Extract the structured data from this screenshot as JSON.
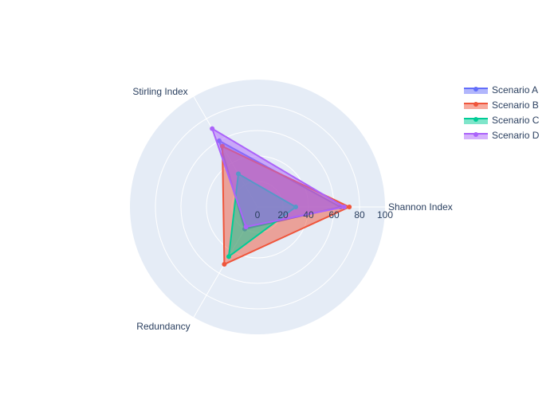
{
  "chart_data": {
    "type": "radar",
    "axes": [
      "Shannon Index",
      "Stirling Index",
      "Redundancy"
    ],
    "radial_range": [
      0,
      100
    ],
    "radial_ticks": [
      "0",
      "20",
      "40",
      "60",
      "80",
      "100"
    ],
    "series": [
      {
        "name": "Scenario A",
        "color": "#636efa",
        "values": [
          65,
          60,
          20
        ]
      },
      {
        "name": "Scenario B",
        "color": "#ef553b",
        "values": [
          72,
          55,
          52
        ]
      },
      {
        "name": "Scenario C",
        "color": "#00cc96",
        "values": [
          30,
          30,
          45
        ]
      },
      {
        "name": "Scenario D",
        "color": "#ab63fa",
        "values": [
          68,
          71,
          18
        ]
      }
    ],
    "legend_position": "top-right",
    "grid": true,
    "polar_background": "#e5ecf6"
  }
}
